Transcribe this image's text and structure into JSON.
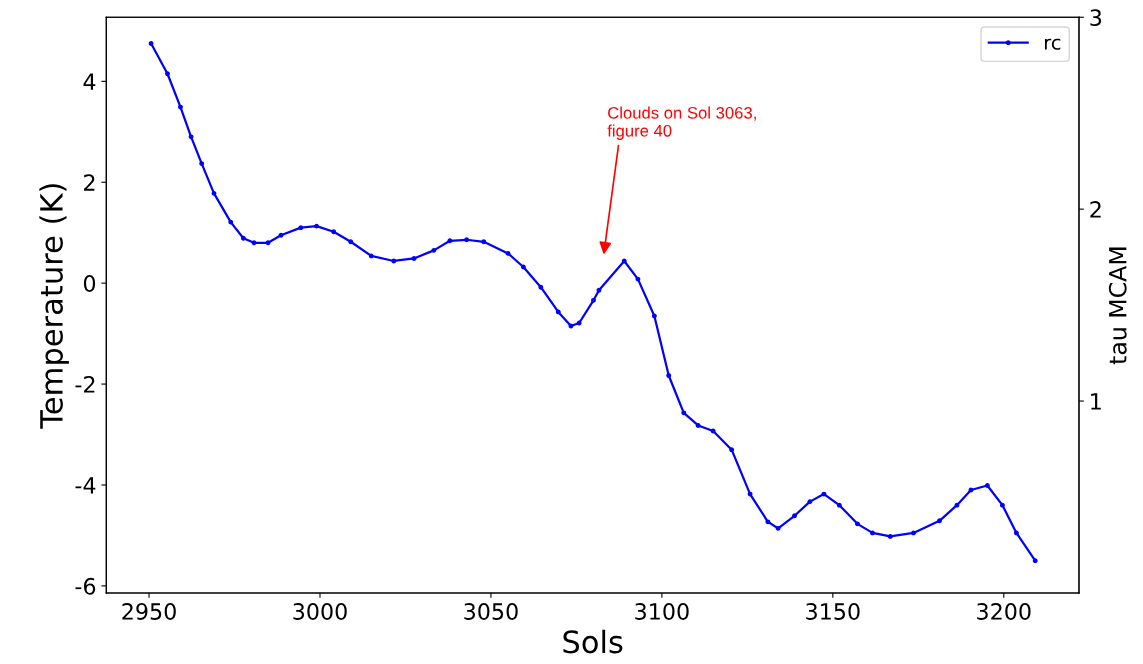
{
  "chart_data": {
    "type": "line",
    "xlabel": "Sols",
    "ylabel": "Temperature (K)",
    "y2label": "tau MCAM",
    "series": [
      {
        "name": "rc",
        "color": "#0000ff",
        "x": [
          2950.6,
          2955.4,
          2959.2,
          2962.3,
          2965.4,
          2969,
          2973.9,
          2977.6,
          2980.7,
          2984.8,
          2988.6,
          2994.4,
          2999,
          3004,
          3009,
          3015,
          3021.6,
          3027.5,
          3033.3,
          3038,
          3042.9,
          3047.9,
          3055,
          3059.5,
          3064.6,
          3069.7,
          3073.4,
          3075.8,
          3080,
          3081.6,
          3089,
          3093,
          3097.8,
          3102,
          3106.4,
          3110.6,
          3115,
          3120.4,
          3125.8,
          3131,
          3134,
          3138.8,
          3143.3,
          3147.4,
          3151.9,
          3157.2,
          3161.6,
          3166.8,
          3173.6,
          3181.2,
          3186.3,
          3190.4,
          3195.2,
          3199.6,
          3203.7,
          3209.2
        ],
        "values": [
          4.75,
          4.15,
          3.49,
          2.9,
          2.37,
          1.78,
          1.21,
          0.89,
          0.8,
          0.8,
          0.95,
          1.1,
          1.13,
          1.02,
          0.82,
          0.54,
          0.44,
          0.49,
          0.65,
          0.84,
          0.86,
          0.82,
          0.59,
          0.32,
          -0.08,
          -0.57,
          -0.85,
          -0.79,
          -0.34,
          -0.14,
          0.44,
          0.08,
          -0.65,
          -1.83,
          -2.57,
          -2.82,
          -2.93,
          -3.3,
          -4.18,
          -4.73,
          -4.86,
          -4.61,
          -4.33,
          -4.18,
          -4.4,
          -4.77,
          -4.95,
          -5.02,
          -4.95,
          -4.71,
          -4.4,
          -4.1,
          -4.01,
          -4.4,
          -4.95,
          -5.5
        ]
      }
    ],
    "xlim": [
      2937.5,
      3222
    ],
    "xticks": [
      2950,
      3000,
      3050,
      3100,
      3150,
      3200
    ],
    "ylim": [
      -6.14,
      5.27
    ],
    "yticks": [
      -6,
      -4,
      -2,
      0,
      2,
      4
    ],
    "y2lim": [
      0,
      3
    ],
    "y2ticks": [
      1,
      2,
      3
    ],
    "annotations": [
      "Clouds on Sol 3063,\nfigure 40"
    ],
    "legend": "top right",
    "marker": "circle",
    "line_style": "solid",
    "grid": false
  }
}
